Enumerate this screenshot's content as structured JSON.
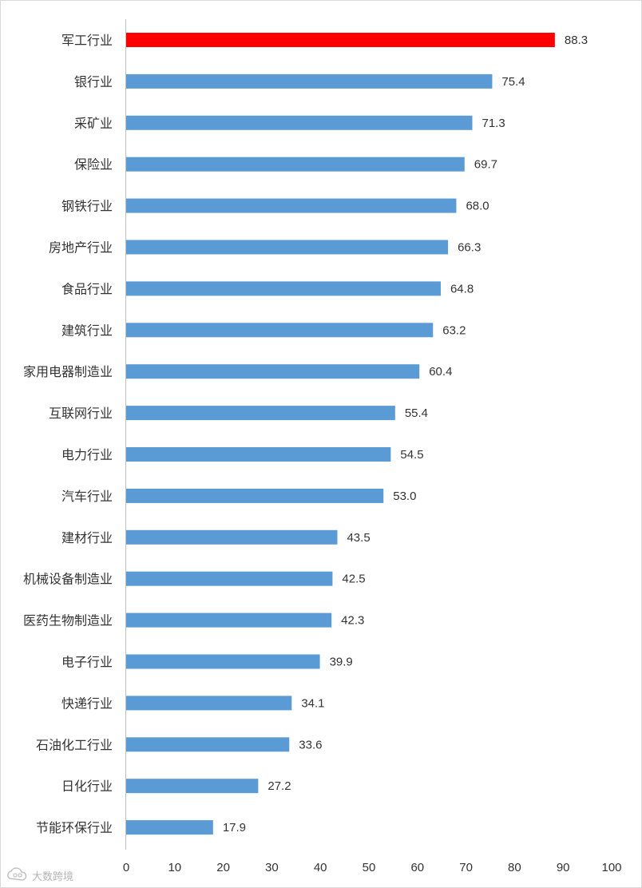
{
  "chart_data": {
    "type": "bar",
    "orientation": "horizontal",
    "categories": [
      "军工行业",
      "银行业",
      "采矿业",
      "保险业",
      "钢铁行业",
      "房地产行业",
      "食品行业",
      "建筑行业",
      "家用电器制造业",
      "互联网行业",
      "电力行业",
      "汽车行业",
      "建材行业",
      "机械设备制造业",
      "医药生物制造业",
      "电子行业",
      "快递行业",
      "石油化工行业",
      "日化行业",
      "节能环保行业"
    ],
    "values": [
      88.3,
      75.4,
      71.3,
      69.7,
      68.0,
      66.3,
      64.8,
      63.2,
      60.4,
      55.4,
      54.5,
      53.0,
      43.5,
      42.5,
      42.3,
      39.9,
      34.1,
      33.6,
      27.2,
      17.9
    ],
    "value_labels": [
      "88.3",
      "75.4",
      "71.3",
      "69.7",
      "68.0",
      "66.3",
      "64.8",
      "63.2",
      "60.4",
      "55.4",
      "54.5",
      "53.0",
      "43.5",
      "42.5",
      "42.3",
      "39.9",
      "34.1",
      "33.6",
      "27.2",
      "17.9"
    ],
    "highlight_index": 0,
    "xlim": [
      0,
      100
    ],
    "xticks": [
      "0",
      "10",
      "20",
      "30",
      "40",
      "50",
      "60",
      "70",
      "80",
      "90",
      "100"
    ],
    "grid": false,
    "title": "",
    "xlabel": "",
    "ylabel": ""
  },
  "colors": {
    "bar": "#5b9bd5",
    "highlight": "#ff0000",
    "axis": "#bfbfbf"
  },
  "watermark": {
    "text": "大数跨境",
    "icon": "cloud-logo-icon"
  }
}
